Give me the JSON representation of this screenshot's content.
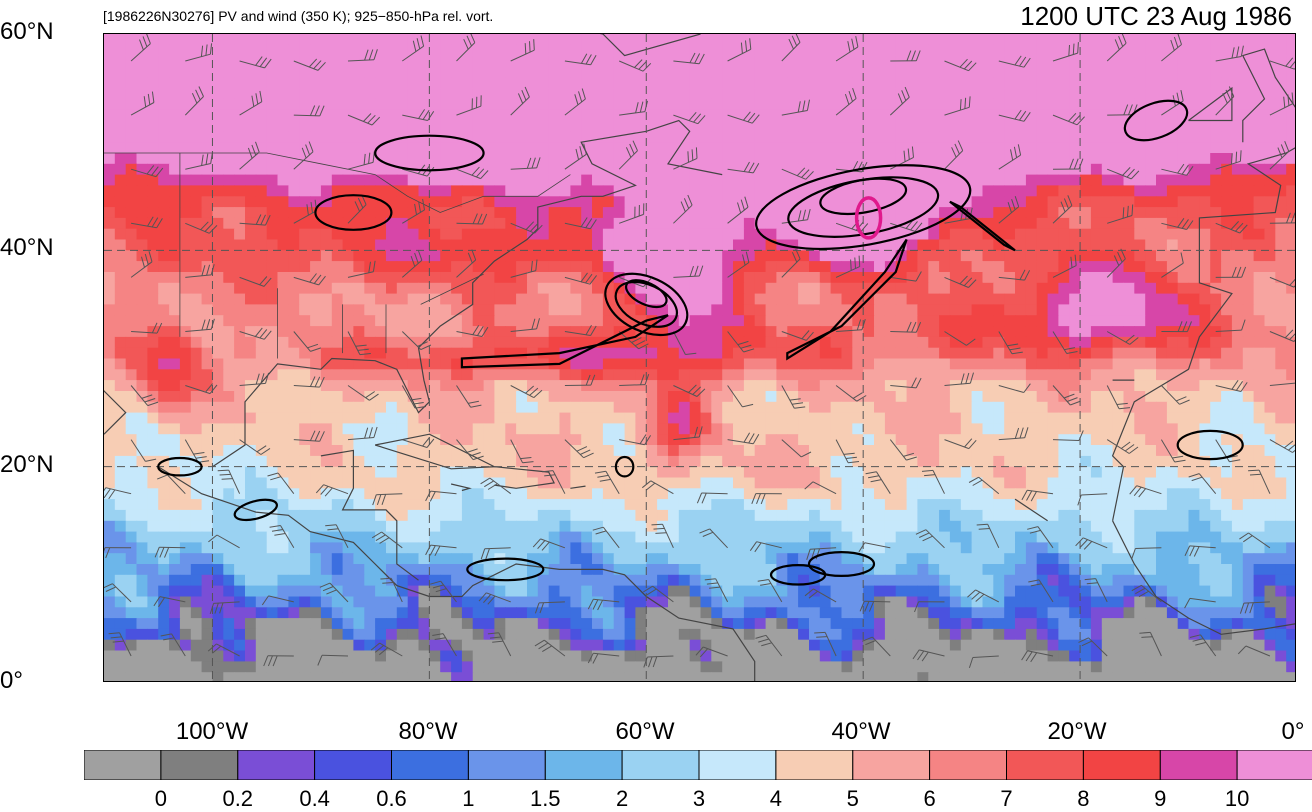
{
  "title_left": "[1986226N30276] PV and wind (350 K); 925−850-hPa rel. vort.",
  "title_right": "1200 UTC 23 Aug 1986",
  "lat_labels": [
    "60°N",
    "40°N",
    "20°N",
    "0°"
  ],
  "lon_labels": [
    "100°W",
    "80°W",
    "60°W",
    "40°W",
    "20°W",
    "0°"
  ],
  "map": {
    "lon_range": [
      -110,
      0
    ],
    "lat_range": [
      0,
      60
    ],
    "contour_color": "#000000",
    "highlight_color": "#e0198c",
    "coastline_color": "#444444",
    "grid_color": "#555555"
  },
  "colorbar": {
    "colors": [
      "#a0a0a0",
      "#7f7f7f",
      "#7a4ed6",
      "#4a52df",
      "#3c6fe0",
      "#6a94ea",
      "#6cb6ea",
      "#9ad2f2",
      "#c6e8fb",
      "#f7cdb4",
      "#f7a4a0",
      "#f58484",
      "#f25757",
      "#f24444",
      "#d746a8",
      "#ee8fd7"
    ],
    "labels": [
      "0",
      "0.2",
      "0.4",
      "0.6",
      "1",
      "1.5",
      "2",
      "3",
      "4",
      "5",
      "6",
      "7",
      "8",
      "9",
      "10"
    ]
  }
}
